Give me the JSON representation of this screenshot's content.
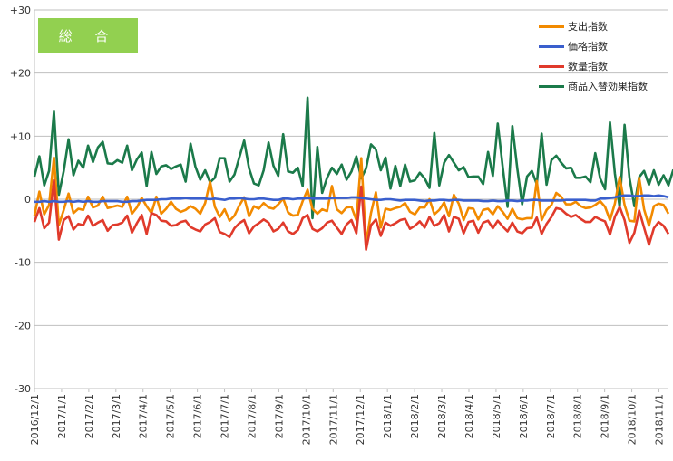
{
  "badge": {
    "label": "総 合",
    "color": "#92d050"
  },
  "chart_data": {
    "type": "line",
    "title": "",
    "xlabel": "",
    "ylabel": "",
    "ylim": [
      -30,
      30
    ],
    "y_ticks": [
      "+30",
      "+20",
      "+10",
      "0",
      "-10",
      "-20",
      "-30"
    ],
    "x_ticks": [
      "2016/12/1",
      "2017/1/1",
      "2017/2/1",
      "2017/3/1",
      "2017/4/1",
      "2017/5/1",
      "2017/6/1",
      "2017/7/1",
      "2017/8/1",
      "2017/9/1",
      "2017/10/1",
      "2017/11/1",
      "2017/12/1",
      "2018/1/1",
      "2018/2/1",
      "2018/3/1",
      "2018/4/1",
      "2018/5/1",
      "2018/6/1",
      "2018/7/1",
      "2018/8/1",
      "2018/9/1",
      "2018/10/1",
      "2018/11/1"
    ],
    "grid": "horizontal",
    "legend_position": "top-right",
    "x_start": "2016-12-01",
    "series": [
      {
        "name": "支出指数",
        "color": "#f28a00",
        "values": [
          -2.6,
          1.2,
          -2.4,
          -0.9,
          6.6,
          -4.1,
          -1.7,
          0.9,
          -2.2,
          -1.5,
          -1.7,
          0.4,
          -1.3,
          -1.0,
          0.4,
          -1.4,
          -1.2,
          -1.0,
          -1.2,
          0.4,
          -2.3,
          -1.3,
          0.2,
          -1.1,
          -2.2,
          0.4,
          -2.3,
          -1.5,
          -0.4,
          -1.5,
          -2.0,
          -1.7,
          -1.1,
          -1.5,
          -2.3,
          -0.6,
          2.8,
          -1.2,
          -2.8,
          -1.6,
          -3.4,
          -2.6,
          -1.0,
          0.3,
          -2.7,
          -1.1,
          -1.5,
          -0.6,
          -1.3,
          -1.5,
          -0.8,
          0.1,
          -2.1,
          -2.6,
          -2.5,
          -0.3,
          1.5,
          -1.5,
          -2.3,
          -1.6,
          -1.9,
          2.1,
          -1.6,
          -2.2,
          -1.3,
          -1.2,
          -3.3,
          6.5,
          -7.0,
          -2.2,
          1.1,
          -4.5,
          -1.5,
          -1.7,
          -1.4,
          -1.2,
          -0.6,
          -2.0,
          -2.4,
          -1.3,
          -1.3,
          0.0,
          -2.4,
          -1.7,
          -0.5,
          -2.7,
          0.7,
          -0.7,
          -3.3,
          -1.4,
          -1.5,
          -3.2,
          -1.7,
          -1.5,
          -2.4,
          -1.1,
          -2.0,
          -3.1,
          -1.5,
          -3.0,
          -3.2,
          -3.0,
          -3.0,
          2.9,
          -3.3,
          -1.7,
          -0.9,
          1.0,
          0.4,
          -0.8,
          -0.8,
          -0.4,
          -1.1,
          -1.4,
          -1.3,
          -0.9,
          -0.3,
          -1.2,
          -3.3,
          -0.7,
          3.5,
          -0.9,
          -3.4,
          -3.5,
          3.4,
          -1.6,
          -4.2,
          -1.1,
          -0.7,
          -0.9,
          -2.3
        ]
      },
      {
        "name": "価格指数",
        "color": "#3a5fcd",
        "values": [
          -0.4,
          -0.4,
          -0.3,
          -0.4,
          -0.3,
          -0.4,
          -0.4,
          -0.3,
          -0.4,
          -0.3,
          -0.4,
          -0.3,
          -0.4,
          -0.4,
          -0.3,
          -0.3,
          -0.3,
          -0.3,
          -0.4,
          -0.4,
          -0.3,
          -0.3,
          -0.2,
          -0.1,
          -0.1,
          -0.1,
          0.0,
          0.0,
          0.1,
          0.1,
          0.1,
          0.2,
          0.1,
          0.1,
          0.1,
          0.1,
          0.0,
          0.1,
          0.0,
          -0.1,
          0.1,
          0.1,
          0.2,
          0.1,
          0.0,
          0.0,
          0.1,
          0.1,
          0.0,
          -0.1,
          -0.1,
          0.1,
          0.1,
          0.0,
          0.1,
          0.1,
          0.2,
          0.1,
          0.1,
          0.1,
          0.1,
          0.2,
          0.2,
          0.2,
          0.2,
          0.3,
          0.3,
          0.2,
          0.1,
          0.0,
          -0.1,
          -0.1,
          0.0,
          0.0,
          -0.1,
          -0.2,
          -0.1,
          -0.1,
          -0.1,
          -0.2,
          -0.3,
          -0.2,
          -0.2,
          -0.1,
          -0.1,
          -0.2,
          -0.1,
          -0.1,
          -0.2,
          -0.2,
          -0.2,
          -0.2,
          -0.3,
          -0.3,
          -0.2,
          -0.3,
          -0.3,
          -0.2,
          -0.2,
          -0.3,
          -0.2,
          -0.2,
          -0.1,
          -0.1,
          -0.2,
          -0.2,
          -0.2,
          -0.2,
          -0.2,
          -0.1,
          -0.1,
          -0.1,
          -0.1,
          -0.1,
          -0.2,
          -0.2,
          0.1,
          0.1,
          0.2,
          0.3,
          0.5,
          0.6,
          0.6,
          0.5,
          0.5,
          0.6,
          0.6,
          0.5,
          0.6,
          0.5,
          0.3
        ]
      },
      {
        "name": "数量指数",
        "color": "#e03a2b",
        "values": [
          -3.6,
          -1.4,
          -4.6,
          -3.7,
          3.0,
          -6.4,
          -3.3,
          -2.7,
          -4.8,
          -3.9,
          -4.1,
          -2.6,
          -4.2,
          -3.7,
          -3.3,
          -5.0,
          -4.1,
          -4.0,
          -3.7,
          -2.6,
          -5.3,
          -3.8,
          -2.5,
          -5.5,
          -2.2,
          -2.5,
          -3.4,
          -3.5,
          -4.2,
          -4.1,
          -3.6,
          -3.4,
          -4.4,
          -4.8,
          -5.1,
          -4.0,
          -3.6,
          -3.0,
          -5.2,
          -5.5,
          -6.0,
          -4.6,
          -3.8,
          -3.3,
          -5.4,
          -4.3,
          -3.8,
          -3.2,
          -3.7,
          -5.1,
          -4.7,
          -3.7,
          -5.1,
          -5.5,
          -4.9,
          -3.0,
          -2.5,
          -4.7,
          -5.1,
          -4.6,
          -3.7,
          -3.4,
          -4.5,
          -5.5,
          -4.0,
          -3.3,
          -5.4,
          2.0,
          -8.0,
          -4.1,
          -3.2,
          -5.8,
          -3.7,
          -4.2,
          -3.8,
          -3.3,
          -3.1,
          -4.7,
          -4.2,
          -3.5,
          -4.5,
          -2.8,
          -4.2,
          -3.8,
          -2.5,
          -5.1,
          -2.8,
          -3.1,
          -5.4,
          -3.6,
          -3.4,
          -5.3,
          -3.7,
          -3.4,
          -4.6,
          -3.4,
          -4.3,
          -5.1,
          -3.7,
          -5.1,
          -5.4,
          -4.6,
          -4.5,
          -2.9,
          -5.5,
          -3.9,
          -2.8,
          -1.4,
          -1.6,
          -2.3,
          -2.8,
          -2.5,
          -3.1,
          -3.6,
          -3.6,
          -2.8,
          -3.2,
          -3.5,
          -5.6,
          -2.8,
          -1.2,
          -3.3,
          -6.9,
          -5.3,
          -1.8,
          -4.5,
          -7.2,
          -4.6,
          -3.6,
          -4.2,
          -5.5
        ]
      },
      {
        "name": "商品入替効果指数",
        "color": "#1b7a4a",
        "values": [
          3.6,
          6.8,
          2.2,
          4.5,
          13.9,
          0.7,
          4.5,
          9.5,
          3.8,
          6.1,
          5.0,
          8.5,
          5.9,
          8.2,
          9.1,
          5.7,
          5.6,
          6.2,
          5.8,
          8.5,
          4.6,
          6.3,
          7.4,
          2.1,
          7.5,
          4.0,
          5.2,
          5.4,
          4.8,
          5.2,
          5.5,
          2.8,
          8.8,
          5.2,
          3.1,
          4.6,
          2.7,
          3.4,
          6.5,
          6.5,
          2.8,
          3.9,
          6.6,
          9.3,
          4.9,
          2.5,
          2.2,
          4.6,
          9.0,
          5.3,
          3.7,
          10.3,
          4.4,
          4.2,
          5.0,
          2.1,
          16.1,
          -3.0,
          8.3,
          1.0,
          3.4,
          5.0,
          4.0,
          5.5,
          3.1,
          4.4,
          6.8,
          3.3,
          4.9,
          8.7,
          7.9,
          4.6,
          6.6,
          1.7,
          5.3,
          2.1,
          5.5,
          2.8,
          3.0,
          4.2,
          3.3,
          1.8,
          10.5,
          2.2,
          5.8,
          7.0,
          5.8,
          4.6,
          5.1,
          3.5,
          3.6,
          3.6,
          2.4,
          7.5,
          3.7,
          12.0,
          5.2,
          -1.2,
          11.6,
          4.9,
          -0.8,
          3.6,
          4.5,
          2.4,
          10.4,
          2.3,
          6.2,
          6.9,
          5.8,
          4.9,
          5.0,
          3.4,
          3.4,
          3.6,
          2.7,
          7.3,
          3.3,
          1.6,
          12.2,
          4.1,
          -1.3,
          11.8,
          3.4,
          -1.1,
          3.5,
          4.5,
          2.3,
          4.6,
          2.3,
          3.8,
          2.2,
          4.7
        ]
      }
    ]
  }
}
